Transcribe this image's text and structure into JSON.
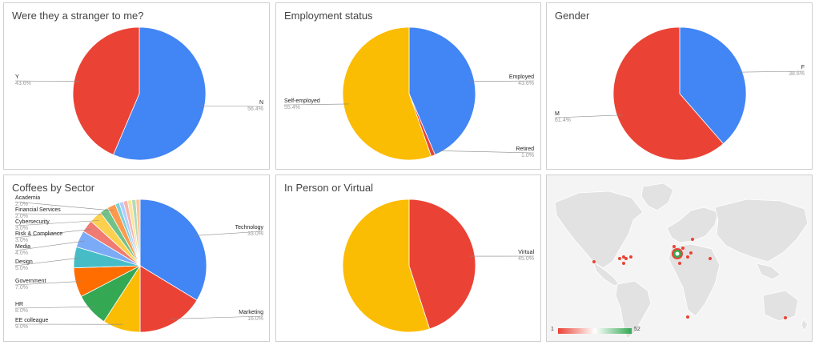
{
  "colors": {
    "blue": "#4285F4",
    "red": "#EA4335",
    "yellow": "#FBBC04",
    "green": "#34A853",
    "orange": "#FF6D01",
    "teal": "#46BDC6",
    "light_blue": "#7BAAF7",
    "light_red": "#F07B72",
    "light_yellow": "#FCD04F",
    "light_green": "#71C287",
    "light_orange": "#FF994D",
    "light_teal": "#7ED1D7",
    "pale_blue": "#B3CEFB",
    "pale_red": "#F7B4AE",
    "pale_yellow": "#FDE49B",
    "pale_green": "#AFDCBB",
    "label_gray": "#999999",
    "label_dark": "#222222"
  },
  "chart_data": [
    {
      "type": "pie",
      "title": "Were they a stranger to me?",
      "categories": [
        "N",
        "Y"
      ],
      "values": [
        56.4,
        43.6
      ],
      "value_labels": [
        "56.4%",
        "43.6%"
      ],
      "colors": [
        "#4285F4",
        "#EA4335"
      ]
    },
    {
      "type": "pie",
      "title": "Employment status",
      "categories": [
        "Employed",
        "Retired",
        "Self-employed"
      ],
      "values": [
        43.6,
        1.0,
        55.4
      ],
      "value_labels": [
        "43.6%",
        "1.0%",
        "55.4%"
      ],
      "colors": [
        "#4285F4",
        "#EA4335",
        "#FBBC04"
      ]
    },
    {
      "type": "pie",
      "title": "Gender",
      "categories": [
        "F",
        "M"
      ],
      "values": [
        38.6,
        61.4
      ],
      "value_labels": [
        "38.6%",
        "61.4%"
      ],
      "colors": [
        "#4285F4",
        "#EA4335"
      ]
    },
    {
      "type": "pie",
      "title": "Coffees by Sector",
      "categories": [
        "Technology",
        "Marketing",
        "EE colleague",
        "HR",
        "Government",
        "Design",
        "Media",
        "Risk & Compliance",
        "Cybersecurity",
        "Financial Services",
        "Academia"
      ],
      "values": [
        33.0,
        16.0,
        9.0,
        8.0,
        7.0,
        5.0,
        4.0,
        3.0,
        3.0,
        2.0,
        2.0
      ],
      "value_labels": [
        "33.0%",
        "16.0%",
        "9.0%",
        "8.0%",
        "7.0%",
        "5.0%",
        "4.0%",
        "3.0%",
        "3.0%",
        "2.0%",
        "2.0%"
      ],
      "colors": [
        "#4285F4",
        "#EA4335",
        "#FBBC04",
        "#34A853",
        "#FF6D01",
        "#46BDC6",
        "#7BAAF7",
        "#F07B72",
        "#FCD04F",
        "#71C287",
        "#FF994D"
      ],
      "other_slices": {
        "values": [
          1.0,
          1.0,
          1.0,
          1.0,
          1.0,
          1.0
        ],
        "colors": [
          "#7ED1D7",
          "#B3CEFB",
          "#F7B4AE",
          "#FDE49B",
          "#AFDCBB",
          "#FFC599"
        ]
      }
    },
    {
      "type": "pie",
      "title": "In Person or Virtual",
      "categories": [
        "Virtual",
        ""
      ],
      "values": [
        45.0,
        55.0
      ],
      "value_labels": [
        "45.0%",
        ""
      ],
      "colors": [
        "#EA4335",
        "#FBBC04"
      ]
    }
  ],
  "map": {
    "legend_min": "1",
    "legend_max": "52",
    "color_min": "#EA4335",
    "color_mid": "#ffffff",
    "color_max": "#34A853"
  }
}
